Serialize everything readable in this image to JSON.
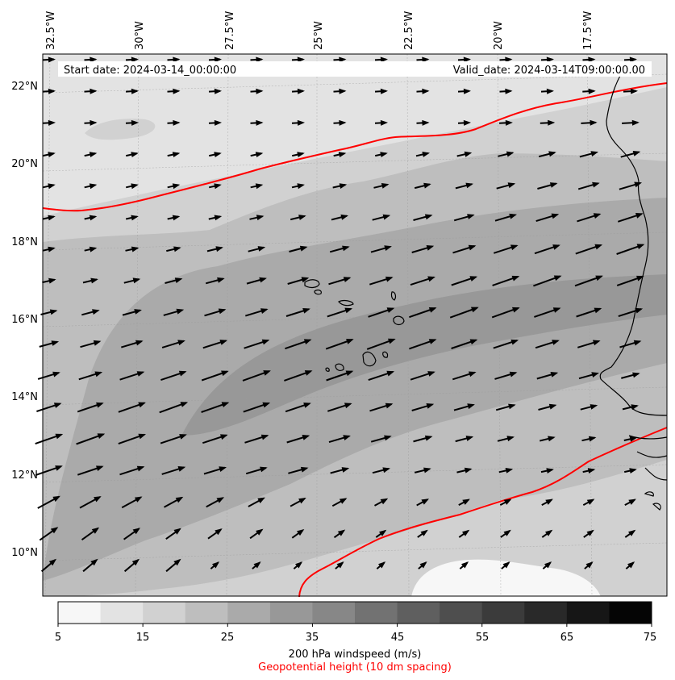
{
  "map": {
    "start_date_label": "Start date: 2024-03-14_00:00:00",
    "valid_date_label": "Valid_date: 2024-03-14T09:00:00.00",
    "lon_ticks": [
      "32.5°W",
      "30°W",
      "27.5°W",
      "25°W",
      "22.5°W",
      "20°W",
      "17.5°W"
    ],
    "lat_ticks": [
      "22°N",
      "20°N",
      "18°N",
      "16°N",
      "14°N",
      "12°N",
      "10°N"
    ],
    "colors": {
      "wind_arrows": "#000000",
      "height_contour": "#ff0000",
      "coastline": "#000000",
      "shade_levels": [
        "#f7f7f7",
        "#e3e3e3",
        "#d1d1d1",
        "#bebebe",
        "#aaaaaa",
        "#989898"
      ]
    }
  },
  "colorbar": {
    "tick_labels": [
      "5",
      "15",
      "25",
      "35",
      "45",
      "55",
      "65",
      "75"
    ],
    "colors": [
      "#f7f7f7",
      "#e3e3e3",
      "#d1d1d1",
      "#bebebe",
      "#aaaaaa",
      "#989898",
      "#878787",
      "#727272",
      "#5f5f5f",
      "#4e4e4e",
      "#3b3b3b",
      "#292929",
      "#161616",
      "#050505"
    ],
    "title": "200 hPa windspeed (m/s)",
    "subtitle": "Geopotential height (10 dm spacing)"
  }
}
